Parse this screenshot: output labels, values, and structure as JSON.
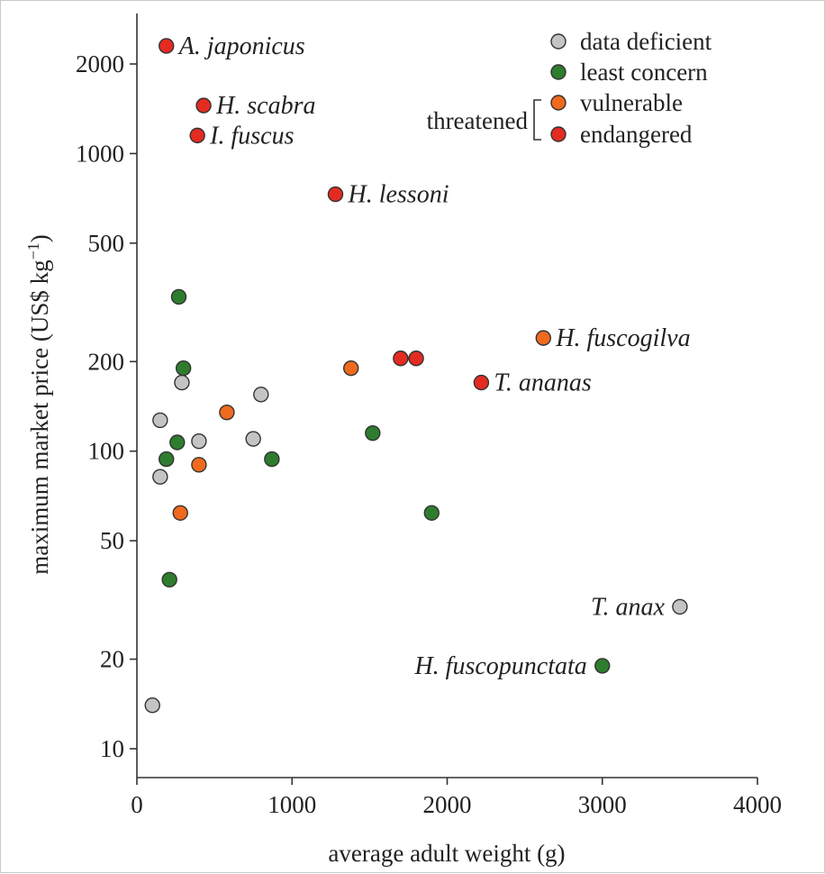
{
  "chart_data": {
    "type": "scatter",
    "xlabel": "average adult weight (g)",
    "ylabel": "maximum market price (US$ kg",
    "ylabel_exponent": "−1",
    "ylabel_close": ")",
    "xlim": [
      0,
      4000
    ],
    "ylim": [
      8,
      2800
    ],
    "yscale": "log",
    "xticks": [
      0,
      1000,
      2000,
      3000,
      4000
    ],
    "xtick_labels": [
      "0",
      "1000",
      "2000",
      "3000",
      "4000"
    ],
    "yticks": [
      10,
      20,
      50,
      100,
      200,
      500,
      1000,
      2000
    ],
    "ytick_labels": [
      "10",
      "20",
      "50",
      "100",
      "200",
      "500",
      "1000",
      "2000"
    ],
    "colors": {
      "data deficient": "#c4c4c4",
      "least concern": "#2e7d2e",
      "vulnerable": "#ef6a1e",
      "endangered": "#e42b22"
    },
    "legend": {
      "position": "top-right",
      "entries": [
        {
          "category": "data deficient",
          "label": "data deficient"
        },
        {
          "category": "least concern",
          "label": "least concern"
        },
        {
          "category": "vulnerable",
          "label": "vulnerable"
        },
        {
          "category": "endangered",
          "label": "endangered"
        }
      ],
      "group_label": "threatened"
    },
    "points": [
      {
        "x": 190,
        "y": 2300,
        "category": "endangered",
        "label": "A. japonicus"
      },
      {
        "x": 430,
        "y": 1450,
        "category": "endangered",
        "label": "H. scabra"
      },
      {
        "x": 390,
        "y": 1150,
        "category": "endangered",
        "label": "I. fuscus"
      },
      {
        "x": 1280,
        "y": 730,
        "category": "endangered",
        "label": "H. lessoni"
      },
      {
        "x": 2620,
        "y": 240,
        "category": "vulnerable",
        "label": "H. fuscogilva"
      },
      {
        "x": 2220,
        "y": 170,
        "category": "endangered",
        "label": "T. ananas"
      },
      {
        "x": 3500,
        "y": 30,
        "category": "data deficient",
        "label": "T. anax"
      },
      {
        "x": 3000,
        "y": 19,
        "category": "least concern",
        "label": "H. fuscopunctata"
      },
      {
        "x": 1700,
        "y": 205,
        "category": "endangered"
      },
      {
        "x": 1800,
        "y": 205,
        "category": "endangered"
      },
      {
        "x": 1380,
        "y": 190,
        "category": "vulnerable"
      },
      {
        "x": 580,
        "y": 135,
        "category": "vulnerable"
      },
      {
        "x": 400,
        "y": 90,
        "category": "vulnerable"
      },
      {
        "x": 280,
        "y": 62,
        "category": "vulnerable"
      },
      {
        "x": 270,
        "y": 330,
        "category": "least concern"
      },
      {
        "x": 300,
        "y": 190,
        "category": "least concern"
      },
      {
        "x": 260,
        "y": 107,
        "category": "least concern"
      },
      {
        "x": 190,
        "y": 94,
        "category": "least concern"
      },
      {
        "x": 210,
        "y": 37,
        "category": "least concern"
      },
      {
        "x": 870,
        "y": 94,
        "category": "least concern"
      },
      {
        "x": 1520,
        "y": 115,
        "category": "least concern"
      },
      {
        "x": 1900,
        "y": 62,
        "category": "least concern"
      },
      {
        "x": 290,
        "y": 170,
        "category": "data deficient"
      },
      {
        "x": 150,
        "y": 127,
        "category": "data deficient"
      },
      {
        "x": 400,
        "y": 108,
        "category": "data deficient"
      },
      {
        "x": 150,
        "y": 82,
        "category": "data deficient"
      },
      {
        "x": 750,
        "y": 110,
        "category": "data deficient"
      },
      {
        "x": 800,
        "y": 155,
        "category": "data deficient"
      },
      {
        "x": 100,
        "y": 14,
        "category": "data deficient"
      }
    ]
  }
}
